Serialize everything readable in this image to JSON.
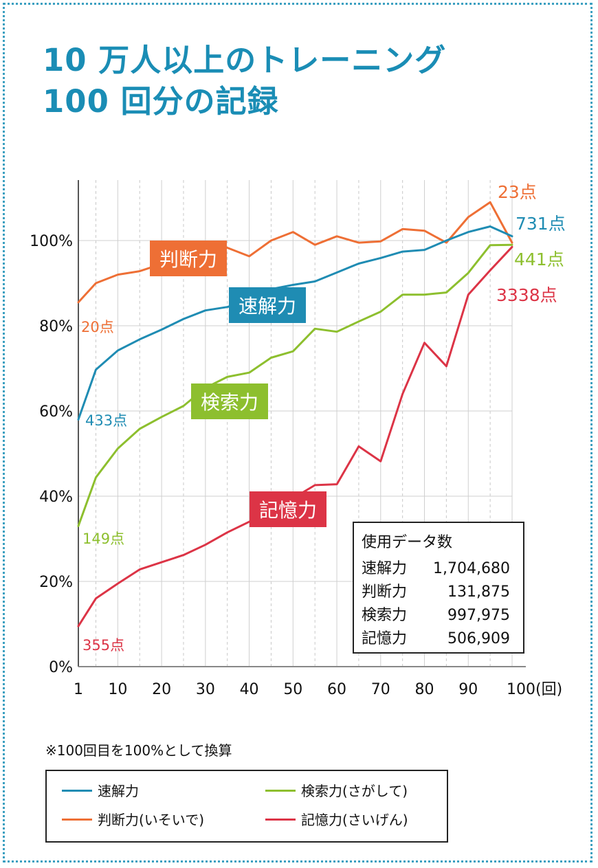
{
  "title": {
    "line1": "10 万人以上のトレーニング",
    "line2": "100 回分の記録"
  },
  "note": "※100回目を100%として換算",
  "chart_data": {
    "type": "line",
    "xlabel": "",
    "ylabel": "",
    "x_ticks": [
      "1",
      "10",
      "20",
      "30",
      "40",
      "50",
      "60",
      "70",
      "80",
      "90",
      "100(回)"
    ],
    "y_ticks": [
      "0%",
      "20%",
      "40%",
      "60%",
      "80%",
      "100%"
    ],
    "ylim": [
      0,
      115
    ],
    "grid": true,
    "series": [
      {
        "key": "judgement",
        "name": "判断力",
        "color": "#ee6f35",
        "start_label": "20点",
        "end_label": "23点",
        "x": [
          1,
          5,
          10,
          15,
          20,
          25,
          30,
          35,
          40,
          45,
          50,
          55,
          60,
          65,
          70,
          75,
          80,
          85,
          90,
          95,
          100
        ],
        "values": [
          85.5,
          90,
          92,
          92.8,
          94.5,
          96.5,
          98,
          98.3,
          96.3,
          100,
          102,
          99,
          101,
          99.5,
          99.8,
          102.7,
          102.3,
          99.5,
          105.5,
          109,
          99.5
        ]
      },
      {
        "key": "speed",
        "name": "速解力",
        "color": "#1f8cb3",
        "start_label": "433点",
        "end_label": "731点",
        "x": [
          1,
          5,
          10,
          15,
          20,
          25,
          30,
          35,
          40,
          45,
          50,
          55,
          60,
          65,
          70,
          75,
          80,
          85,
          90,
          95,
          100
        ],
        "values": [
          58,
          69.7,
          74.2,
          76.8,
          79.1,
          81.6,
          83.6,
          84.4,
          86,
          88.6,
          89.6,
          90.4,
          92.5,
          94.6,
          95.9,
          97.4,
          97.8,
          100,
          102,
          103.3,
          101
        ]
      },
      {
        "key": "search",
        "name": "検索力",
        "color": "#8dbf2e",
        "start_label": "149点",
        "end_label": "441点",
        "x": [
          1,
          5,
          10,
          15,
          20,
          25,
          30,
          35,
          40,
          45,
          50,
          55,
          60,
          65,
          70,
          75,
          80,
          85,
          90,
          95,
          100
        ],
        "values": [
          33,
          44.4,
          51.2,
          55.8,
          58.6,
          61.2,
          65.4,
          68,
          69,
          72.5,
          74,
          79.3,
          78.6,
          81,
          83.3,
          87.3,
          87.3,
          87.8,
          92.4,
          98.9,
          99
        ]
      },
      {
        "key": "memory",
        "name": "記憶力",
        "color": "#dc3446",
        "start_label": "355点",
        "end_label": "3338点",
        "x": [
          1,
          5,
          10,
          15,
          20,
          25,
          30,
          35,
          40,
          45,
          50,
          55,
          60,
          65,
          70,
          75,
          80,
          85,
          90,
          95,
          100
        ],
        "values": [
          9.5,
          16,
          19.5,
          22.8,
          24.5,
          26.2,
          28.6,
          31.5,
          34,
          36.5,
          39.5,
          42.6,
          42.8,
          51.7,
          48.2,
          64,
          76,
          70.5,
          87.3,
          93,
          98.5
        ]
      }
    ],
    "boxed_labels": {
      "judgement": "判断力",
      "speed": "速解力",
      "search": "検索力",
      "memory": "記憶力"
    },
    "data_box": {
      "title": "使用データ数",
      "rows": [
        {
          "name": "速解力",
          "value": "1,704,680"
        },
        {
          "name": "判断力",
          "value": "131,875"
        },
        {
          "name": "検索力",
          "value": "997,975"
        },
        {
          "name": "記憶力",
          "value": "506,909"
        }
      ]
    }
  },
  "legend": {
    "items": [
      {
        "key": "speed",
        "label": "速解力",
        "color": "#1f8cb3"
      },
      {
        "key": "search",
        "label": "検索力(さがして)",
        "color": "#8dbf2e"
      },
      {
        "key": "judgement",
        "label": "判断力(いそいで)",
        "color": "#ee6f35"
      },
      {
        "key": "memory",
        "label": "記憶力(さいげん)",
        "color": "#dc3446"
      }
    ]
  }
}
